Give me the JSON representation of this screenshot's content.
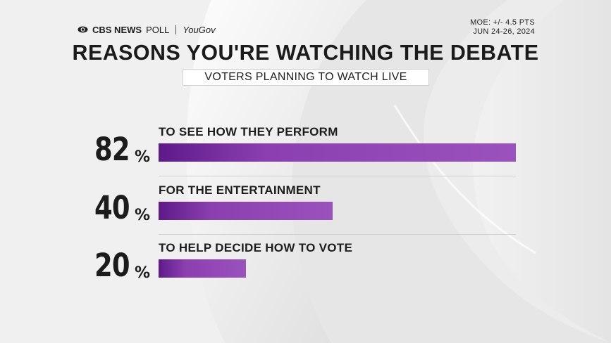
{
  "brand": {
    "network": "CBS NEWS",
    "poll": "POLL",
    "partner": "YouGov"
  },
  "moe": {
    "line1": "MOE: +/- 4.5 PTS",
    "line2": "JUN 24-26, 2024"
  },
  "colors": {
    "bar_start": "#5e1a8a",
    "bar_end": "#9a52bd",
    "text": "#1c1c1c",
    "background": "#ededed"
  },
  "chart_data": {
    "type": "bar",
    "orientation": "horizontal",
    "title": "REASONS YOU'RE WATCHING THE DEBATE",
    "subtitle": "VOTERS PLANNING TO WATCH LIVE",
    "xlim": [
      0,
      82
    ],
    "categories": [
      "TO SEE HOW THEY PERFORM",
      "FOR THE ENTERTAINMENT",
      "TO HELP DECIDE HOW TO VOTE"
    ],
    "values": [
      82,
      40,
      20
    ],
    "value_labels": [
      "82",
      "40",
      "20"
    ],
    "value_suffix": "%"
  }
}
